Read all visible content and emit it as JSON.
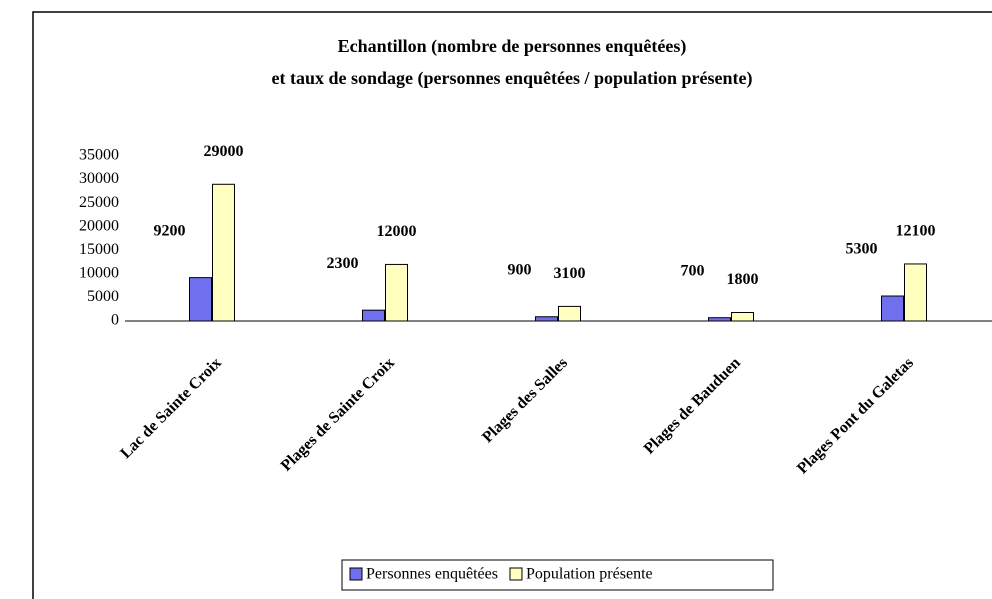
{
  "chart_data": {
    "type": "bar",
    "title": "Echantillon (nombre de personnes enquêtées)",
    "subtitle": "et taux de sondage (personnes enquêtées / population présente)",
    "categories": [
      "Lac de Sainte Croix",
      "Plages de Sainte Croix",
      "Plages des Salles",
      "Plages de Bauduen",
      "Plages Pont du Galetas"
    ],
    "series": [
      {
        "name": "Personnes enquêtées",
        "color": "#7070ee",
        "values": [
          9200,
          2300,
          900,
          700,
          5300
        ]
      },
      {
        "name": "Population présente",
        "color": "#ffffc0",
        "values": [
          29000,
          12000,
          3100,
          1800,
          12100
        ]
      }
    ],
    "ylim": [
      0,
      35000
    ],
    "yticks": [
      0,
      5000,
      10000,
      15000,
      20000,
      25000,
      30000,
      35000
    ],
    "grid": false,
    "legend": "bottom"
  }
}
